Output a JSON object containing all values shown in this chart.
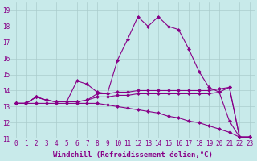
{
  "xlabel": "Windchill (Refroidissement éolien,°C)",
  "xlim": [
    -0.5,
    23.5
  ],
  "ylim": [
    11,
    19.5
  ],
  "xticks": [
    0,
    1,
    2,
    3,
    4,
    5,
    6,
    7,
    8,
    9,
    10,
    11,
    12,
    13,
    14,
    15,
    16,
    17,
    18,
    19,
    20,
    21,
    22,
    23
  ],
  "yticks": [
    11,
    12,
    13,
    14,
    15,
    16,
    17,
    18,
    19
  ],
  "background_color": "#c8eaea",
  "grid_color": "#aacccc",
  "line_color": "#880088",
  "series": [
    [
      13.2,
      13.2,
      13.6,
      13.4,
      13.3,
      13.3,
      14.6,
      14.4,
      13.9,
      13.8,
      15.9,
      17.2,
      18.6,
      18.0,
      18.6,
      18.0,
      17.8,
      16.6,
      15.2,
      14.2,
      13.9,
      12.1,
      11.1,
      11.1
    ],
    [
      13.2,
      13.2,
      13.6,
      13.4,
      13.3,
      13.3,
      13.3,
      13.4,
      13.8,
      13.8,
      13.9,
      13.9,
      14.0,
      14.0,
      14.0,
      14.0,
      14.0,
      14.0,
      14.0,
      14.0,
      14.1,
      14.2,
      11.1,
      11.1
    ],
    [
      13.2,
      13.2,
      13.6,
      13.4,
      13.3,
      13.3,
      13.3,
      13.4,
      13.6,
      13.6,
      13.7,
      13.7,
      13.8,
      13.8,
      13.8,
      13.8,
      13.8,
      13.8,
      13.8,
      13.8,
      13.9,
      14.2,
      11.1,
      11.1
    ],
    [
      13.2,
      13.2,
      13.2,
      13.2,
      13.2,
      13.2,
      13.2,
      13.2,
      13.2,
      13.1,
      13.0,
      12.9,
      12.8,
      12.7,
      12.6,
      12.4,
      12.3,
      12.1,
      12.0,
      11.8,
      11.6,
      11.4,
      11.1,
      11.1
    ]
  ],
  "marker": "D",
  "markersize": 2,
  "linewidth": 0.8,
  "tick_fontsize": 5.5,
  "xlabel_fontsize": 6.5
}
